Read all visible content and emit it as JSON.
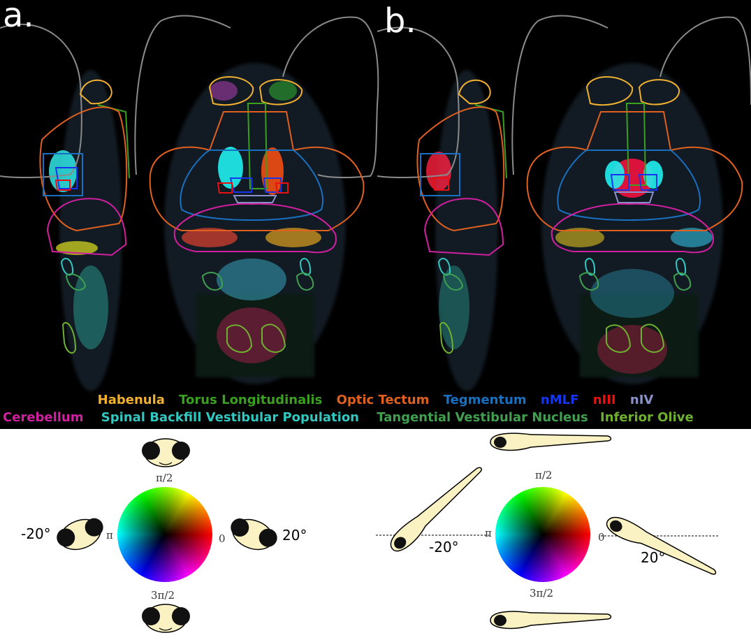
{
  "panels": {
    "a": "a.",
    "b": "b."
  },
  "legend": {
    "row1": [
      {
        "label": "Habenula",
        "color": "#f0b030"
      },
      {
        "label": "Torus Longitudinalis",
        "color": "#3aa020"
      },
      {
        "label": "Optic Tectum",
        "color": "#e06020"
      },
      {
        "label": "Tegmentum",
        "color": "#1a70c0"
      },
      {
        "label": "nMLF",
        "color": "#1535f0"
      },
      {
        "label": "nIII",
        "color": "#e81010"
      },
      {
        "label": "nIV",
        "color": "#8a90c8"
      }
    ],
    "row2": [
      {
        "label": "Cerebellum",
        "color": "#d020a0"
      },
      {
        "label": "Spinal Backfill Vestibular Population",
        "color": "#30c8c0"
      },
      {
        "label": "Tangential Vestibular Nucleus",
        "color": "#40a050"
      },
      {
        "label": "Inferior Olive",
        "color": "#70b030"
      }
    ]
  },
  "roll_key": {
    "left_angle": "-20°",
    "right_angle": "20°",
    "phase_top": "π/2",
    "phase_left": "π",
    "phase_right": "0",
    "phase_bottom": "3π/2"
  },
  "pitch_key": {
    "left_angle": "-20°",
    "right_angle": "20°",
    "phase_top": "π/2",
    "phase_left": "π",
    "phase_right": "0",
    "phase_bottom": "3π/2"
  },
  "colors": {
    "fish_body": "#fbf2c4",
    "background_top": "#000000",
    "background_bottom": "#ffffff"
  }
}
